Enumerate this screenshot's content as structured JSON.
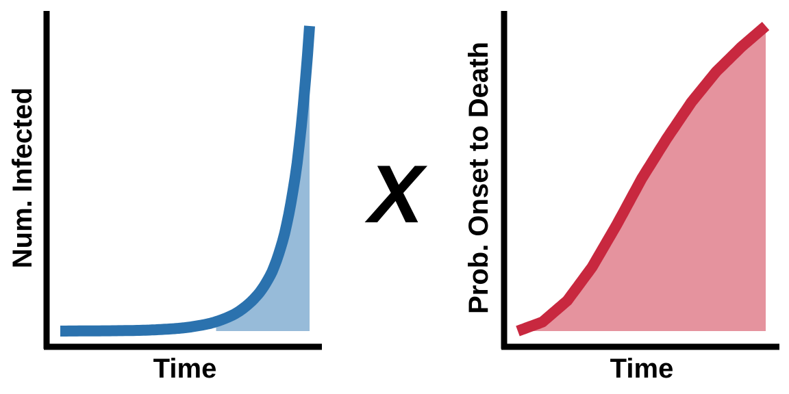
{
  "operator_symbol": "X",
  "colors": {
    "axis": "#000000",
    "left_line": "#2B72AE",
    "left_fill": "#97BBD9",
    "right_line": "#C8283F",
    "right_fill": "#E5939E"
  },
  "chart_data": [
    {
      "type": "area",
      "xlabel": "Time",
      "ylabel": "Num. Infected",
      "grid": false,
      "legend": "none",
      "tick_labels": "none",
      "curve": "exponential",
      "shaded_region": "late portion under curve",
      "x": [
        0,
        0.1,
        0.2,
        0.3,
        0.4,
        0.5,
        0.55,
        0.6,
        0.65,
        0.7,
        0.75,
        0.8,
        0.85,
        0.9,
        0.95,
        1.0
      ],
      "y": [
        0,
        0.0005,
        0.001,
        0.002,
        0.005,
        0.011,
        0.017,
        0.025,
        0.038,
        0.056,
        0.085,
        0.127,
        0.195,
        0.32,
        0.55,
        1.0
      ],
      "fill_from_x": 0.62,
      "xlim": [
        0,
        1
      ],
      "ylim": [
        0,
        1
      ]
    },
    {
      "type": "area",
      "xlabel": "Time",
      "ylabel": "Prob. Onset to Death",
      "grid": false,
      "legend": "none",
      "tick_labels": "none",
      "curve": "cumulative probability (S-shaped)",
      "shaded_region": "entire area under curve",
      "x": [
        0,
        0.1,
        0.2,
        0.3,
        0.4,
        0.5,
        0.6,
        0.7,
        0.8,
        0.9,
        1.0
      ],
      "y": [
        0,
        0.03,
        0.1,
        0.21,
        0.35,
        0.5,
        0.63,
        0.75,
        0.85,
        0.93,
        1.0
      ],
      "fill_from_x": 0,
      "xlim": [
        0,
        1
      ],
      "ylim": [
        0,
        1
      ]
    }
  ]
}
